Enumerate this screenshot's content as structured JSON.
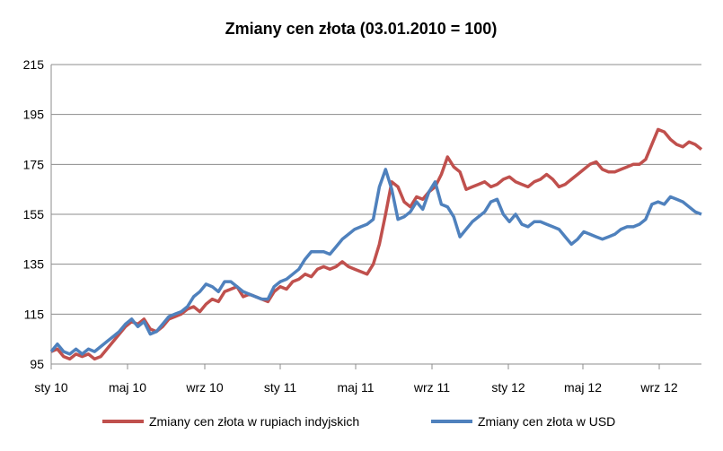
{
  "chart_data": {
    "type": "line",
    "title": "Zmiany cen złota (03.01.2010  = 100)",
    "xlabel": "",
    "ylabel": "",
    "ylim": [
      95,
      215
    ],
    "yticks": [
      95,
      115,
      135,
      155,
      175,
      195,
      215
    ],
    "xticks": [
      "sty 10",
      "maj 10",
      "wrz 10",
      "sty 11",
      "maj 11",
      "wrz 11",
      "sty 12",
      "maj 12",
      "wrz 12"
    ],
    "grid": true,
    "legend_position": "bottom",
    "x": [
      0,
      0.5,
      1,
      1.5,
      2,
      2.5,
      3,
      3.5,
      4,
      4.5,
      5,
      5.5,
      6,
      6.5,
      7,
      7.5,
      8,
      8.5,
      9,
      9.5,
      10,
      10.5,
      11,
      11.5,
      12,
      12.5,
      13,
      13.5,
      14,
      14.5,
      15,
      15.5,
      16,
      16.5,
      17,
      17.5,
      18,
      18.5,
      19,
      19.5,
      20,
      20.5,
      21,
      21.5,
      22,
      22.5,
      23,
      23.5,
      24,
      24.5,
      25,
      25.5,
      26,
      26.5,
      27,
      27.5,
      28,
      28.5,
      29,
      29.5,
      30,
      30.5,
      31,
      31.5,
      32,
      32.5,
      33,
      33.5,
      34,
      34.5,
      35,
      35.5,
      36,
      36.5
    ],
    "series": [
      {
        "name": "Zmiany cen złota w rupiach indyjskich",
        "color": "#c0504d",
        "values": [
          100,
          101,
          98,
          97,
          99,
          98,
          99,
          97,
          98,
          101,
          104,
          107,
          110,
          112,
          111,
          113,
          109,
          108,
          110,
          113,
          114,
          115,
          117,
          118,
          116,
          119,
          121,
          120,
          124,
          125,
          126,
          122,
          123,
          122,
          121,
          120,
          124,
          126,
          125,
          128,
          129,
          131,
          130,
          133,
          134,
          133,
          134,
          136,
          134,
          133,
          132,
          131,
          135,
          143,
          155,
          168,
          166,
          160,
          158,
          162,
          161,
          164,
          166,
          171,
          178,
          174,
          172,
          165,
          166,
          167,
          168,
          166,
          167,
          169
        ]
      },
      {
        "name": "Zmiany cen złota w USD",
        "color": "#4f81bd",
        "values": [
          100,
          103,
          100,
          99,
          101,
          99,
          101,
          100,
          102,
          104,
          106,
          108,
          111,
          113,
          110,
          112,
          107,
          108,
          111,
          114,
          115,
          116,
          118,
          122,
          124,
          127,
          126,
          124,
          128,
          128,
          126,
          124,
          123,
          122,
          121,
          121,
          126,
          128,
          129,
          131,
          133,
          137,
          140,
          140,
          140,
          139,
          142,
          145,
          147,
          149,
          150,
          151,
          153,
          166,
          173,
          165,
          153,
          154,
          156,
          160,
          157,
          164,
          168,
          159,
          158,
          154,
          146,
          149,
          152,
          154,
          156,
          160,
          161,
          155
        ]
      }
    ],
    "series_extension_x": [
      37,
      37.5,
      38,
      38.5,
      39,
      39.5,
      40,
      40.5,
      41,
      41.5,
      42,
      42.5,
      43,
      43.5,
      44,
      44.5,
      45,
      45.5,
      46,
      46.5,
      47,
      47.5,
      48,
      48.5,
      49,
      49.5,
      50,
      50.5,
      51,
      51.5,
      52,
      52.5
    ],
    "series_extension": [
      [
        170,
        168,
        167,
        166,
        168,
        169,
        171,
        169,
        166,
        167,
        169,
        171,
        173,
        175,
        176,
        173,
        172,
        172,
        173,
        174,
        175,
        175,
        177,
        183,
        189,
        188,
        185,
        183,
        182,
        184,
        183,
        181
      ],
      [
        152,
        155,
        151,
        150,
        152,
        152,
        151,
        150,
        149,
        146,
        143,
        145,
        148,
        147,
        146,
        145,
        146,
        147,
        149,
        150,
        150,
        151,
        153,
        159,
        160,
        159,
        162,
        161,
        160,
        158,
        156,
        155
      ]
    ]
  }
}
